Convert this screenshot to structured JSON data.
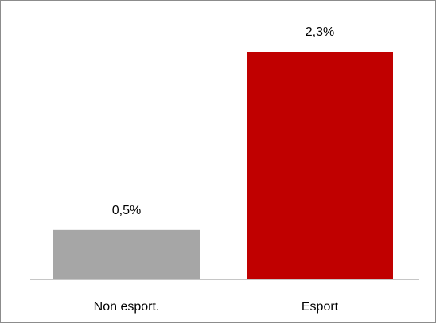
{
  "chart_data": {
    "type": "bar",
    "categories": [
      "Non esport.",
      "Esport"
    ],
    "values": [
      0.5,
      2.3
    ],
    "value_labels": [
      "0,5%",
      "2,3%"
    ],
    "colors": [
      "#a6a6a6",
      "#c00000"
    ],
    "title": "",
    "xlabel": "",
    "ylabel": "",
    "ylim": [
      0,
      2.5
    ],
    "grid": false,
    "legend": "none"
  }
}
